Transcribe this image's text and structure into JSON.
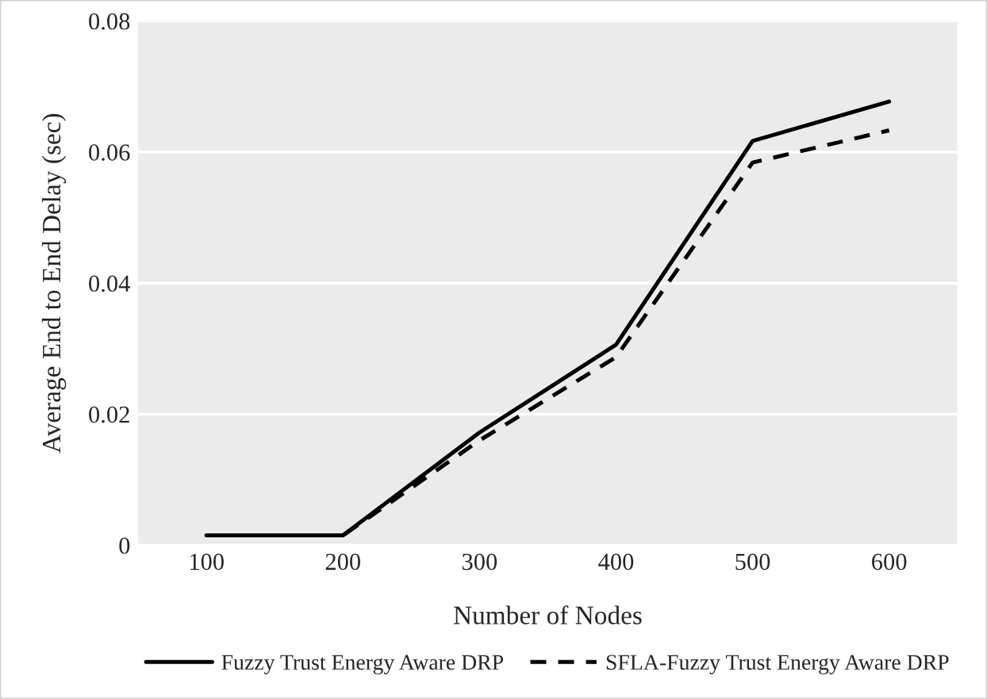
{
  "chart_data": {
    "type": "line",
    "xlabel": "Number of Nodes",
    "ylabel": "Average End to End Delay (sec)",
    "categories": [
      "100",
      "200",
      "300",
      "400",
      "500",
      "600"
    ],
    "series": [
      {
        "name": "Fuzzy Trust Energy Aware DRP",
        "color": "#000000",
        "line_style": "solid",
        "values": [
          0.0015,
          0.0015,
          0.0172,
          0.0306,
          0.0617,
          0.0677
        ]
      },
      {
        "name": "SFLA-Fuzzy Trust Energy Aware DRP",
        "color": "#000000",
        "line_style": "dashed",
        "values": [
          0.0015,
          0.0015,
          0.016,
          0.0287,
          0.0584,
          0.0633
        ]
      }
    ],
    "ylim": [
      0,
      0.08
    ],
    "yticks": [
      {
        "value": 0,
        "label": "0"
      },
      0.02,
      0.04,
      0.06,
      0.08
    ],
    "grid": "y",
    "legend": "bottom",
    "marker": "none"
  }
}
